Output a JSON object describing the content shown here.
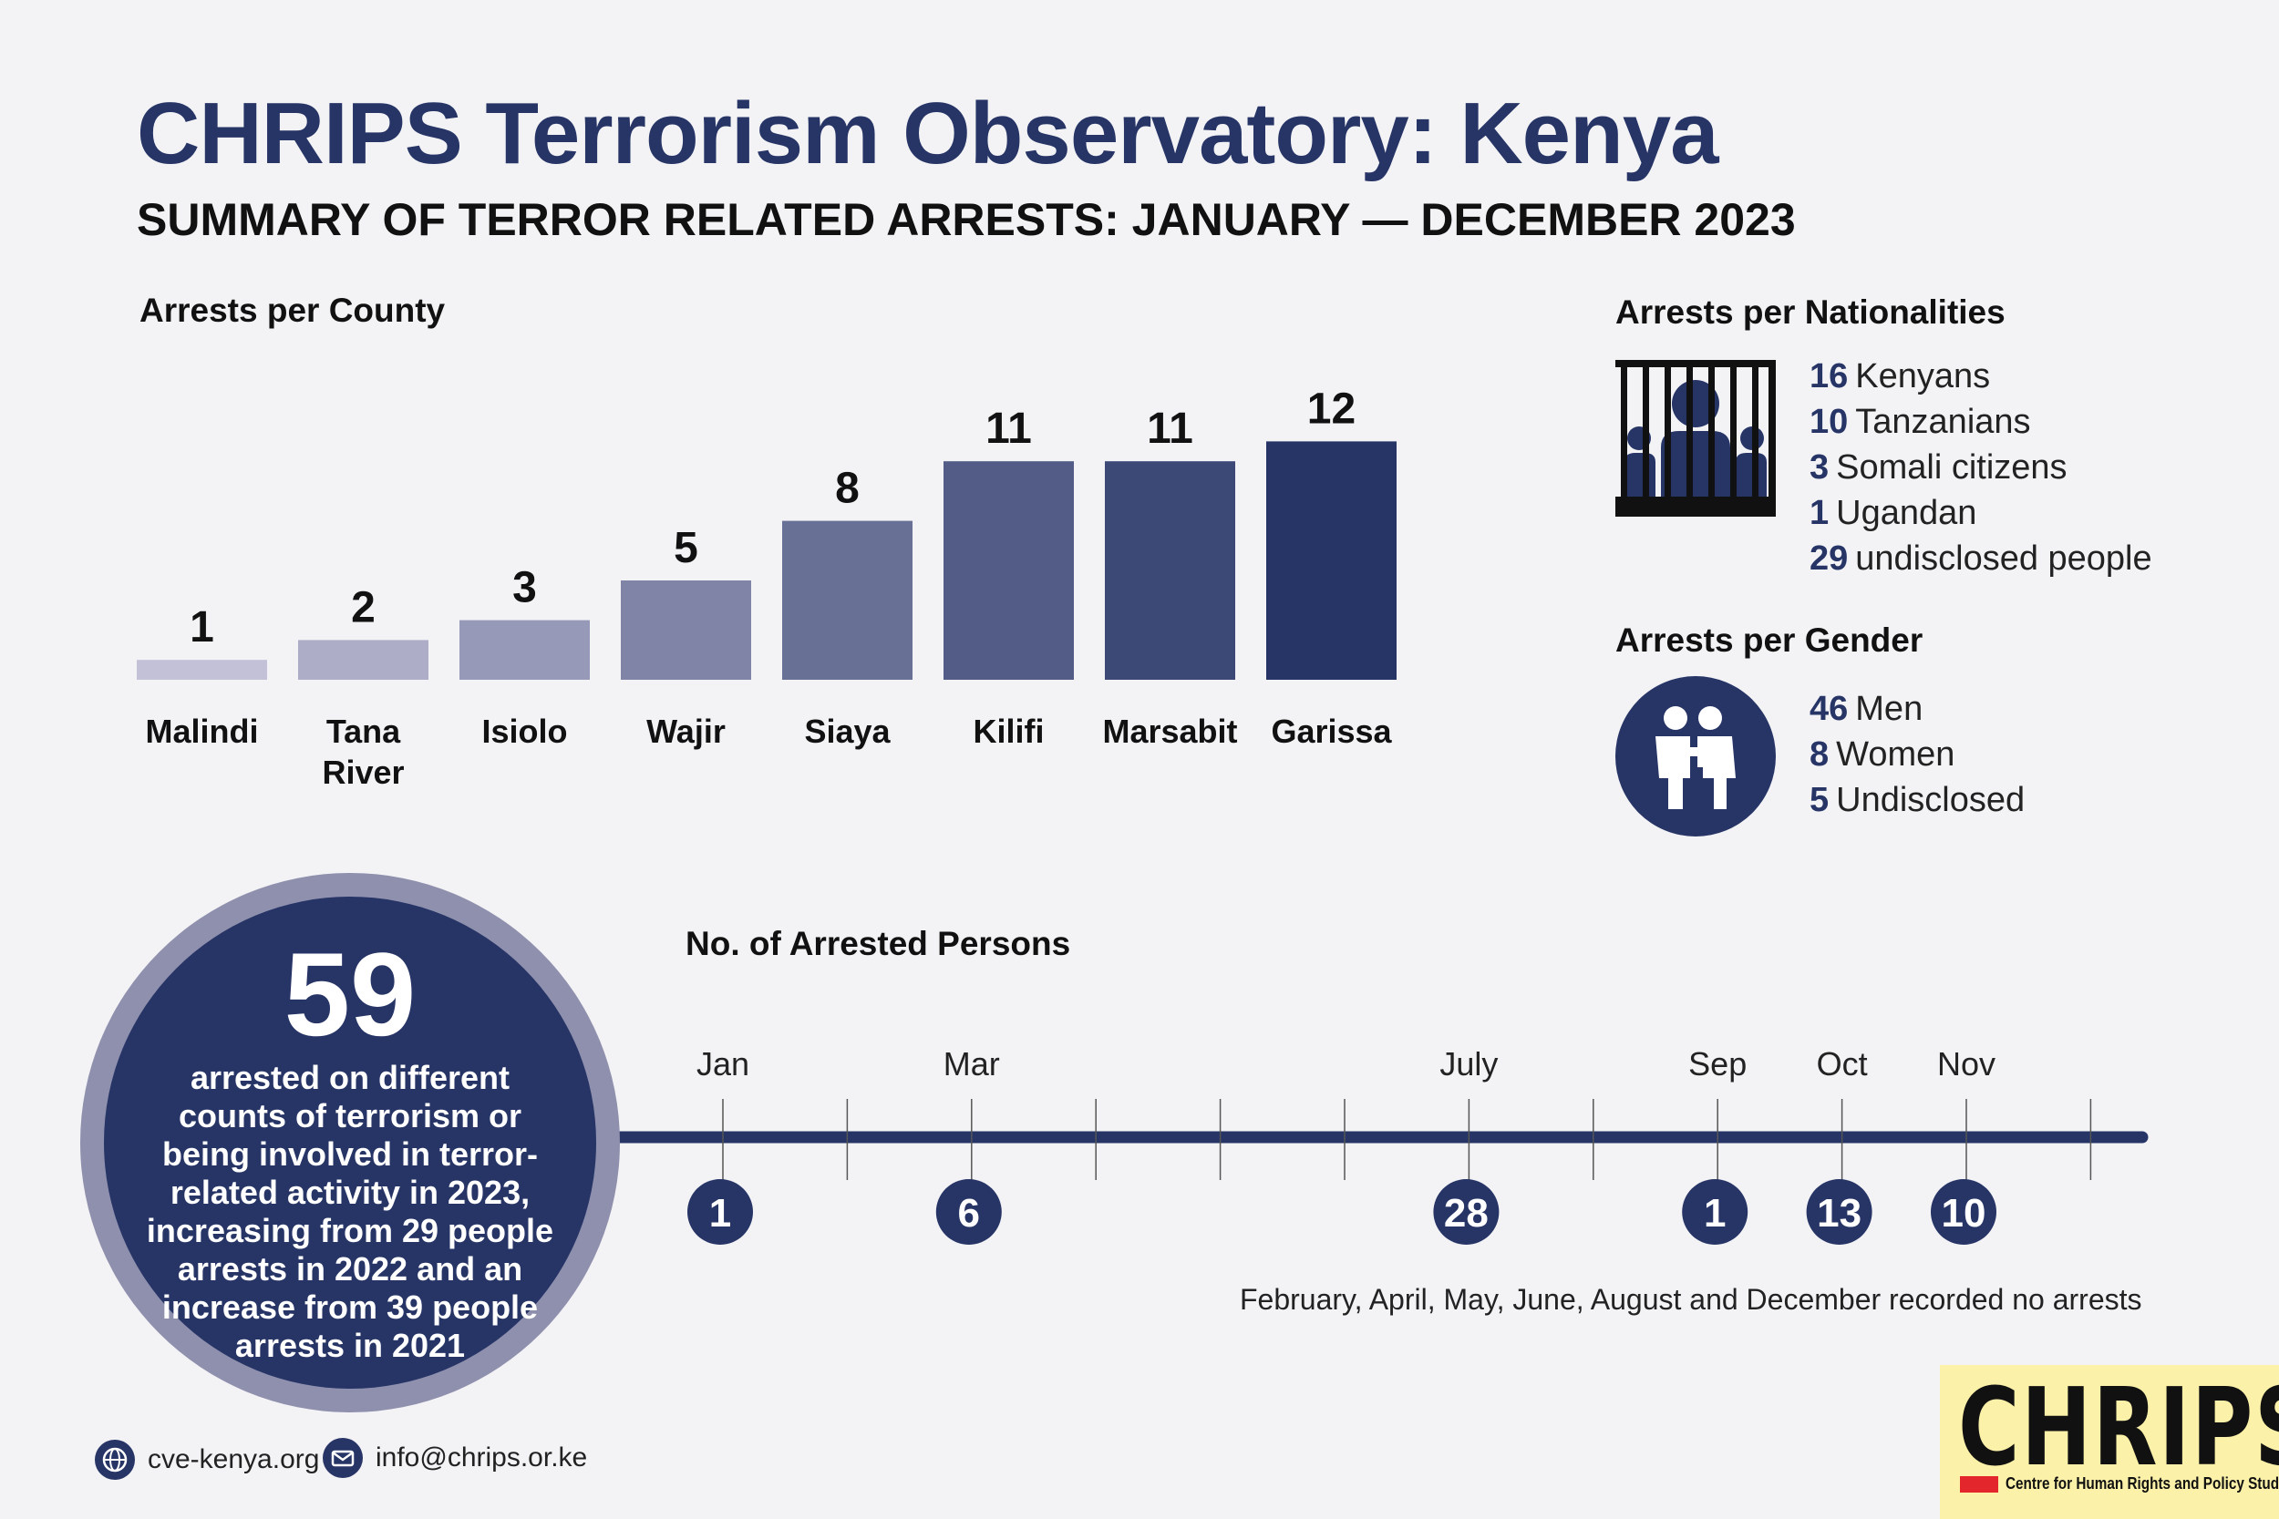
{
  "header": {
    "title": "CHRIPS Terrorism Observatory: Kenya",
    "subtitle": "SUMMARY OF TERROR RELATED ARRESTS: JANUARY — DECEMBER 2023"
  },
  "county_section": {
    "heading": "Arrests per County"
  },
  "nationalities": {
    "heading": "Arrests per Nationalities",
    "items": [
      {
        "count": "16",
        "label": "Kenyans"
      },
      {
        "count": "10",
        "label": "Tanzanians"
      },
      {
        "count": "3",
        "label": "Somali citizens"
      },
      {
        "count": "1",
        "label": "Ugandan"
      },
      {
        "count": "29",
        "label": "undisclosed people"
      }
    ],
    "icon": "prison-bars-icon"
  },
  "gender": {
    "heading": "Arrests per Gender",
    "items": [
      {
        "count": "46",
        "label": "Men"
      },
      {
        "count": "8",
        "label": "Women"
      },
      {
        "count": "5",
        "label": "Undisclosed"
      }
    ],
    "icon": "gender-people-icon"
  },
  "summary": {
    "number": "59",
    "text": "arrested on different counts of terrorism or being involved in terror-related activity in 2023, increasing from 29 people arrests in 2022 and an increase from 39 people arrests in 2021"
  },
  "timeline_section": {
    "heading": "No. of Arrested Persons",
    "note": "February, April, May, June, August and December recorded no arrests"
  },
  "contacts": {
    "website": "cve-kenya.org",
    "email": "info@chrips.or.ke"
  },
  "logo": {
    "word": "CHRIPS",
    "tagline": "Centre for Human Rights and Policy Studies"
  },
  "colors": {
    "navy": "#263466",
    "bar_light": "#c3c1d7",
    "bar_dark": "#263466",
    "background": "#f3f3f6",
    "logo_bg": "#fbf1a8",
    "logo_red": "#e3262b"
  },
  "chart_data": [
    {
      "type": "bar",
      "title": "Arrests per County",
      "categories": [
        "Malindi",
        "Tana River",
        "Isiolo",
        "Wajir",
        "Siaya",
        "Kilifi",
        "Marsabit",
        "Garissa"
      ],
      "values": [
        1,
        2,
        3,
        5,
        8,
        11,
        11,
        12
      ],
      "ylim": [
        0,
        12
      ],
      "xlabel": "",
      "ylabel": "",
      "grid": false
    },
    {
      "type": "line",
      "title": "No. of Arrested Persons",
      "categories": [
        "Jan",
        "Mar",
        "July",
        "Sep",
        "Oct",
        "Nov"
      ],
      "values": [
        1,
        6,
        28,
        1,
        13,
        10
      ],
      "month_index": [
        1,
        3,
        7,
        9,
        10,
        11
      ],
      "xlabel": "",
      "ylabel": "",
      "grid": false
    }
  ]
}
